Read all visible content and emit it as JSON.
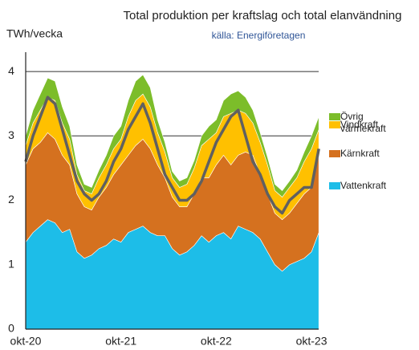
{
  "chart_data": {
    "type": "stacked_area",
    "title": "Total produktion per kraftslag och total elanvändning",
    "subtitle": "källa: Energiföretagen",
    "y_label": "TWh/vecka",
    "categories": [
      "okt-20",
      null,
      null,
      null,
      null,
      null,
      null,
      null,
      null,
      null,
      null,
      null,
      null,
      "okt-21",
      null,
      null,
      null,
      null,
      null,
      null,
      null,
      null,
      null,
      null,
      null,
      null,
      "okt-22",
      null,
      null,
      null,
      null,
      null,
      null,
      null,
      null,
      null,
      null,
      null,
      null,
      "okt-23",
      null
    ],
    "ylim": [
      0,
      4.3
    ],
    "yticks": [
      0,
      1,
      2,
      3,
      4
    ],
    "grid": true,
    "series": [
      {
        "name": "Vattenkraft",
        "color": "#1dbde8",
        "values": [
          1.35,
          1.5,
          1.6,
          1.7,
          1.65,
          1.5,
          1.55,
          1.2,
          1.1,
          1.15,
          1.25,
          1.3,
          1.4,
          1.35,
          1.5,
          1.55,
          1.6,
          1.5,
          1.45,
          1.45,
          1.25,
          1.15,
          1.2,
          1.3,
          1.45,
          1.35,
          1.45,
          1.5,
          1.4,
          1.6,
          1.55,
          1.5,
          1.4,
          1.2,
          1.0,
          0.9,
          1.0,
          1.05,
          1.1,
          1.2,
          1.5
        ]
      },
      {
        "name": "Kärnkraft",
        "color": "#d5711f",
        "values": [
          1.2,
          1.3,
          1.3,
          1.35,
          1.3,
          1.2,
          1.0,
          0.9,
          0.8,
          0.7,
          0.8,
          0.9,
          1.0,
          1.2,
          1.2,
          1.3,
          1.35,
          1.3,
          1.1,
          0.9,
          0.8,
          0.75,
          0.7,
          0.8,
          0.9,
          1.0,
          1.1,
          1.2,
          1.15,
          1.1,
          1.2,
          1.2,
          1.0,
          0.9,
          0.8,
          0.8,
          0.8,
          0.9,
          1.0,
          1.0,
          1.2
        ]
      },
      {
        "name": "Vindkraft",
        "color": "#ffc000",
        "values": [
          0.3,
          0.4,
          0.5,
          0.55,
          0.6,
          0.5,
          0.4,
          0.3,
          0.25,
          0.25,
          0.3,
          0.35,
          0.4,
          0.4,
          0.6,
          0.7,
          0.7,
          0.65,
          0.5,
          0.4,
          0.3,
          0.3,
          0.35,
          0.4,
          0.5,
          0.6,
          0.5,
          0.6,
          0.8,
          0.7,
          0.6,
          0.5,
          0.5,
          0.45,
          0.35,
          0.35,
          0.4,
          0.4,
          0.5,
          0.6,
          0.4
        ]
      },
      {
        "name": "Övrig värmekraft",
        "color": "#7cbd2a",
        "values": [
          0.15,
          0.2,
          0.25,
          0.3,
          0.3,
          0.25,
          0.2,
          0.15,
          0.1,
          0.1,
          0.12,
          0.15,
          0.2,
          0.2,
          0.25,
          0.3,
          0.3,
          0.3,
          0.2,
          0.15,
          0.1,
          0.1,
          0.1,
          0.12,
          0.15,
          0.2,
          0.2,
          0.25,
          0.3,
          0.3,
          0.25,
          0.2,
          0.15,
          0.12,
          0.1,
          0.1,
          0.1,
          0.12,
          0.15,
          0.2,
          0.2
        ]
      }
    ],
    "line_series": {
      "color": "#606060",
      "values": [
        2.6,
        3.0,
        3.3,
        3.6,
        3.5,
        3.1,
        2.7,
        2.3,
        2.1,
        2.0,
        2.1,
        2.3,
        2.6,
        2.8,
        3.1,
        3.3,
        3.5,
        3.2,
        2.8,
        2.4,
        2.2,
        2.0,
        2.0,
        2.1,
        2.3,
        2.6,
        2.9,
        3.1,
        3.3,
        3.4,
        3.0,
        2.6,
        2.4,
        2.1,
        1.9,
        1.8,
        2.0,
        2.1,
        2.2,
        2.2,
        2.8
      ]
    }
  }
}
